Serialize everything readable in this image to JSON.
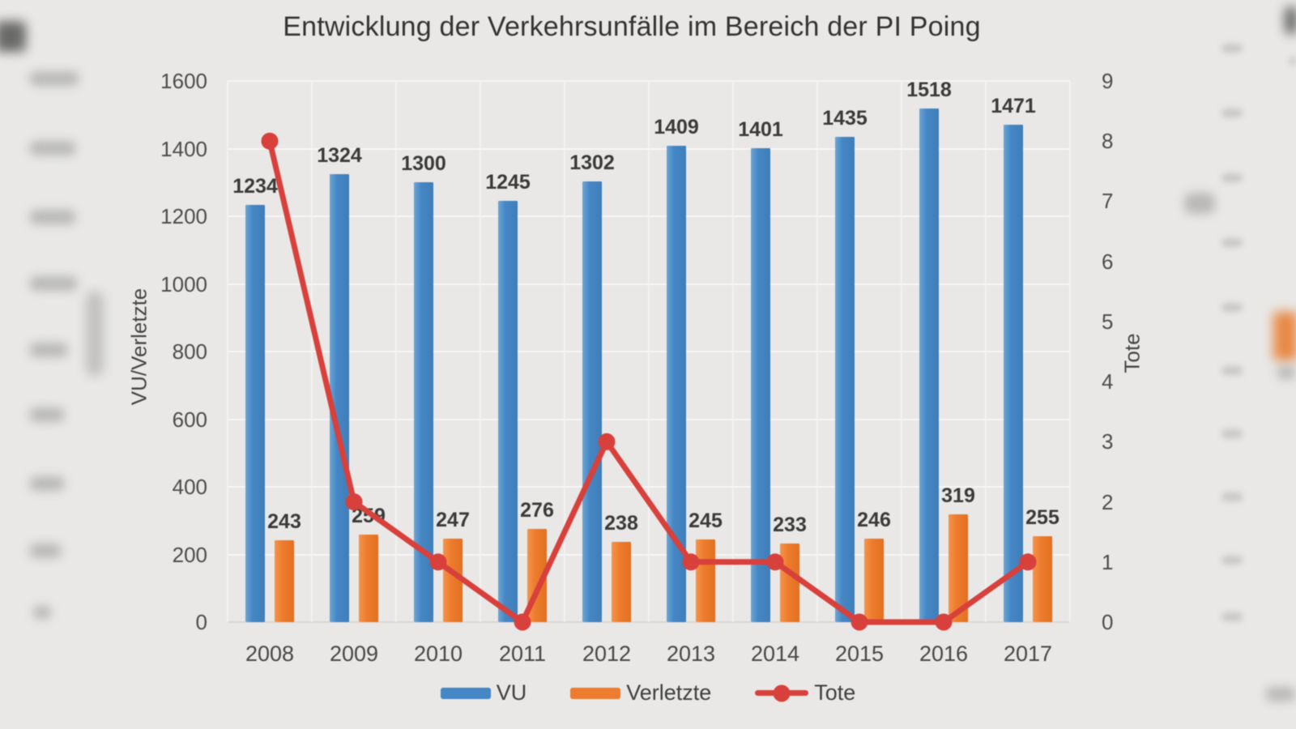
{
  "title": "Entwicklung der Verkehrsunfälle im Bereich der PI Poing",
  "chart_data": {
    "type": "combo-bar-line",
    "title": "Entwicklung der Verkehrsunfälle im Bereich der PI Poing",
    "categories": [
      "2008",
      "2009",
      "2010",
      "2011",
      "2012",
      "2013",
      "2014",
      "2015",
      "2016",
      "2017"
    ],
    "series": [
      {
        "name": "VU",
        "type": "bar",
        "axis": "left",
        "color": "#4587c4",
        "values": [
          1234,
          1324,
          1300,
          1245,
          1302,
          1409,
          1401,
          1435,
          1518,
          1471
        ]
      },
      {
        "name": "Verletzte",
        "type": "bar",
        "axis": "left",
        "color": "#ed7c2e",
        "values": [
          243,
          259,
          247,
          276,
          238,
          245,
          233,
          246,
          319,
          255
        ]
      },
      {
        "name": "Tote",
        "type": "line",
        "axis": "right",
        "color": "#d8403c",
        "values": [
          8,
          2,
          1,
          0,
          3,
          1,
          1,
          0,
          0,
          1
        ]
      }
    ],
    "left_axis": {
      "label": "VU/Verletzte",
      "min": 0,
      "max": 1600,
      "step": 200,
      "ticks": [
        "0",
        "200",
        "400",
        "600",
        "800",
        "1000",
        "1200",
        "1400",
        "1600"
      ]
    },
    "right_axis": {
      "label": "Tote",
      "min": 0,
      "max": 9,
      "step": 1,
      "ticks": [
        "0",
        "1",
        "2",
        "3",
        "4",
        "5",
        "6",
        "7",
        "8",
        "9"
      ]
    },
    "legend": {
      "position": "bottom",
      "entries": [
        "VU",
        "Verletzte",
        "Tote"
      ]
    },
    "grid": true,
    "data_labels": true
  }
}
